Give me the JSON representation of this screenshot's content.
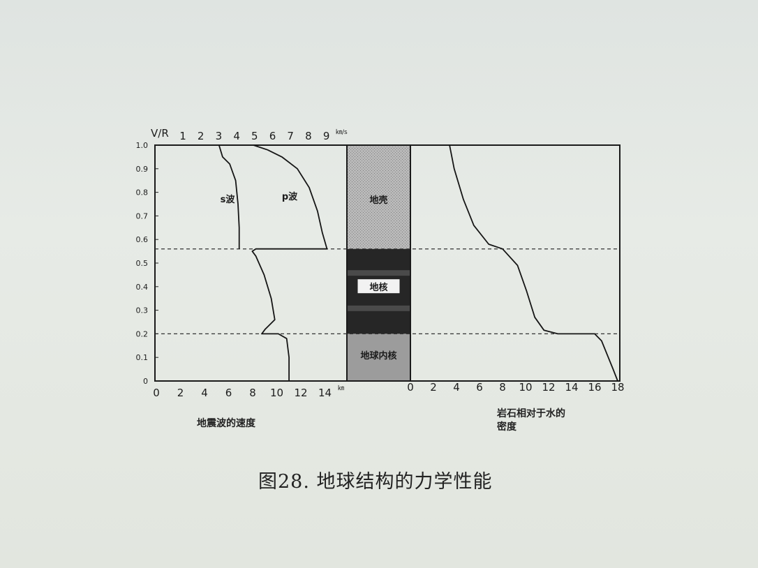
{
  "caption": "图28. 地球结构的力学性能",
  "chart_data": {
    "type": "line",
    "y_axis": {
      "label": "V/R",
      "ticks": [
        "0",
        "0.1",
        "0.2",
        "0.3",
        "0.4",
        "0.5",
        "0.6",
        "0.7",
        "0.8",
        "0.9",
        "1.0"
      ],
      "range": [
        0,
        1.0
      ]
    },
    "left_panel": {
      "xlabel": "地震波的速度",
      "bottom_ticks": [
        "0",
        "2",
        "4",
        "6",
        "8",
        "10",
        "12",
        "14"
      ],
      "bottom_unit": "㎞",
      "top_ticks": [
        "1",
        "2",
        "3",
        "4",
        "5",
        "6",
        "7",
        "8",
        "9"
      ],
      "top_unit": "㎞/s",
      "series": [
        {
          "name": "s波",
          "points": [
            [
              5.4,
              1.0
            ],
            [
              5.7,
              0.95
            ],
            [
              6.3,
              0.92
            ],
            [
              6.8,
              0.85
            ],
            [
              7.0,
              0.75
            ],
            [
              7.1,
              0.65
            ],
            [
              7.1,
              0.56
            ]
          ]
        },
        {
          "name": "p波",
          "points": [
            [
              8.3,
              1.0
            ],
            [
              9.5,
              0.98
            ],
            [
              10.7,
              0.95
            ],
            [
              12.0,
              0.9
            ],
            [
              13.0,
              0.82
            ],
            [
              13.7,
              0.72
            ],
            [
              14.1,
              0.63
            ],
            [
              14.5,
              0.56
            ],
            [
              8.5,
              0.56
            ],
            [
              8.2,
              0.55
            ],
            [
              8.5,
              0.53
            ],
            [
              9.2,
              0.45
            ],
            [
              9.8,
              0.35
            ],
            [
              10.1,
              0.26
            ],
            [
              9.3,
              0.22
            ],
            [
              9.0,
              0.2
            ],
            [
              10.4,
              0.2
            ],
            [
              11.1,
              0.18
            ],
            [
              11.3,
              0.1
            ],
            [
              11.3,
              0.0
            ]
          ]
        }
      ]
    },
    "layers": [
      {
        "name": "地壳",
        "from": 0.56,
        "to": 1.0
      },
      {
        "name": "地核",
        "from": 0.2,
        "to": 0.56
      },
      {
        "name": "地球内核",
        "from": 0.0,
        "to": 0.2
      }
    ],
    "right_panel": {
      "xlabel": "岩石相对于水的密度",
      "bottom_ticks": [
        "0",
        "2",
        "4",
        "6",
        "8",
        "10",
        "12",
        "14",
        "16",
        "18"
      ],
      "series": [
        {
          "name": "",
          "points": [
            [
              3.4,
              1.0
            ],
            [
              3.8,
              0.9
            ],
            [
              4.6,
              0.77
            ],
            [
              5.5,
              0.66
            ],
            [
              6.8,
              0.58
            ],
            [
              8.0,
              0.56
            ],
            [
              9.3,
              0.49
            ],
            [
              10.1,
              0.38
            ],
            [
              10.8,
              0.27
            ],
            [
              11.6,
              0.215
            ],
            [
              12.8,
              0.2
            ],
            [
              16.0,
              0.2
            ],
            [
              16.6,
              0.17
            ],
            [
              17.6,
              0.05
            ],
            [
              18.0,
              0.0
            ]
          ]
        }
      ]
    },
    "boundaries": [
      0.56,
      0.2
    ]
  }
}
